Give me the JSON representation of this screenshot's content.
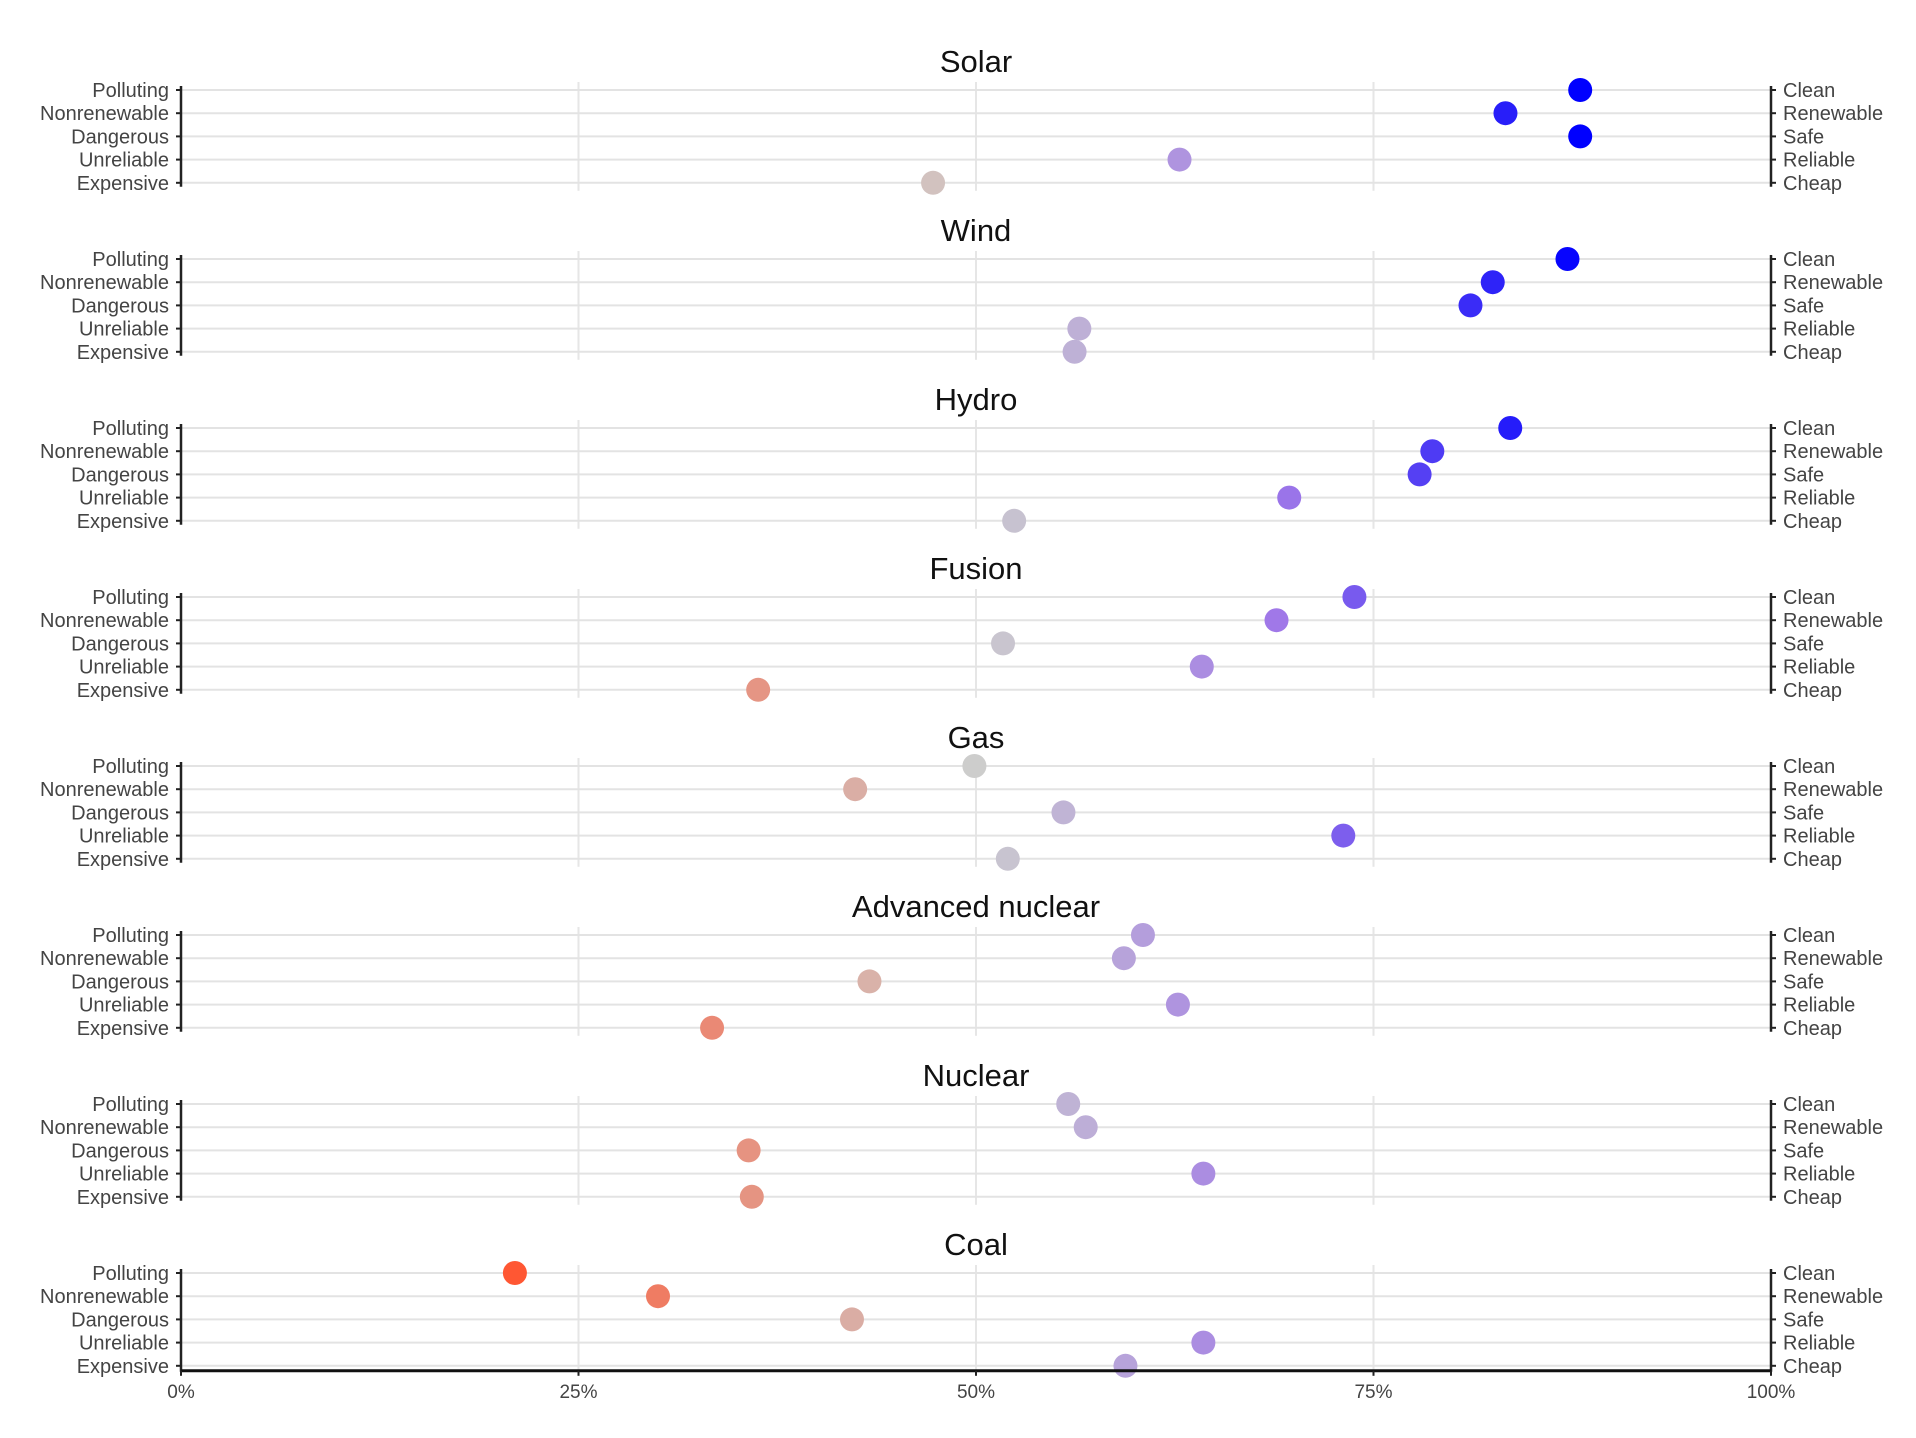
{
  "chart_data": {
    "type": "scatter",
    "title": "",
    "xlabel": "",
    "ylabel": "",
    "xlim": [
      0,
      100
    ],
    "x_ticks": [
      "0%",
      "25%",
      "50%",
      "75%",
      "100%"
    ],
    "left_labels": [
      "Polluting",
      "Nonrenewable",
      "Dangerous",
      "Unreliable",
      "Expensive"
    ],
    "right_labels": [
      "Clean",
      "Renewable",
      "Safe",
      "Reliable",
      "Cheap"
    ],
    "grid": true,
    "color_scale": {
      "low": "#ff5733",
      "mid": "#cdcdcd",
      "high": "#0000ff"
    },
    "panels": [
      {
        "name": "Solar",
        "values": [
          88.0,
          83.3,
          88.0,
          62.8,
          47.3
        ]
      },
      {
        "name": "Wind",
        "values": [
          87.2,
          82.5,
          81.1,
          56.5,
          56.2
        ]
      },
      {
        "name": "Hydro",
        "values": [
          83.6,
          78.7,
          77.9,
          69.7,
          52.4
        ]
      },
      {
        "name": "Fusion",
        "values": [
          73.8,
          68.9,
          51.7,
          64.2,
          36.3
        ]
      },
      {
        "name": "Gas",
        "values": [
          49.9,
          42.4,
          55.5,
          73.1,
          52.0
        ]
      },
      {
        "name": "Advanced nuclear",
        "values": [
          60.5,
          59.3,
          43.3,
          62.7,
          33.4
        ]
      },
      {
        "name": "Nuclear",
        "values": [
          55.8,
          56.9,
          35.7,
          64.3,
          35.9
        ]
      },
      {
        "name": "Coal",
        "values": [
          21.0,
          30.0,
          42.2,
          64.3,
          59.4
        ]
      }
    ]
  }
}
